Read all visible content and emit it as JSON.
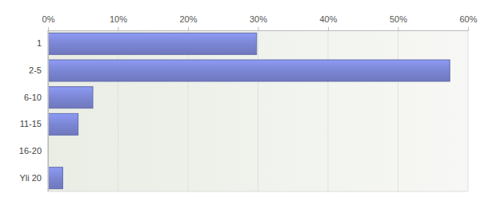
{
  "chart_data": {
    "type": "bar",
    "orientation": "horizontal",
    "categories": [
      "1",
      "2-5",
      "6-10",
      "11-15",
      "16-20",
      "Yli 20"
    ],
    "values": [
      29.8,
      57.4,
      6.4,
      4.3,
      0,
      2.1
    ],
    "color": "#7b86d4",
    "xlim": [
      0,
      60
    ],
    "xticks": [
      {
        "value": 0,
        "label": "0%"
      },
      {
        "value": 10,
        "label": "10%"
      },
      {
        "value": 20,
        "label": "20%"
      },
      {
        "value": 30,
        "label": "30%"
      },
      {
        "value": 40,
        "label": "40%"
      },
      {
        "value": 50,
        "label": "50%"
      },
      {
        "value": 60,
        "label": "60%"
      }
    ],
    "grid": true
  }
}
